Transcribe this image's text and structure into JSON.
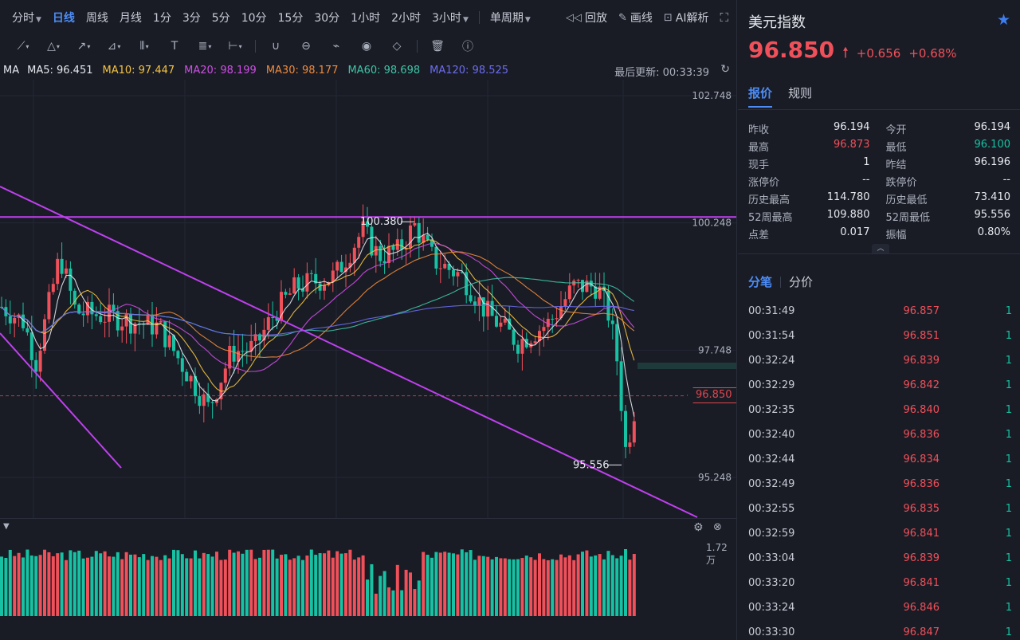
{
  "periods": [
    {
      "label": "分时",
      "dropdown": true,
      "active": false
    },
    {
      "label": "日线",
      "dropdown": false,
      "active": true
    },
    {
      "label": "周线",
      "dropdown": false,
      "active": false
    },
    {
      "label": "月线",
      "dropdown": false,
      "active": false
    },
    {
      "label": "1分",
      "dropdown": false,
      "active": false
    },
    {
      "label": "3分",
      "dropdown": false,
      "active": false
    },
    {
      "label": "5分",
      "dropdown": false,
      "active": false
    },
    {
      "label": "10分",
      "dropdown": false,
      "active": false
    },
    {
      "label": "15分",
      "dropdown": false,
      "active": false
    },
    {
      "label": "30分",
      "dropdown": false,
      "active": false
    },
    {
      "label": "1小时",
      "dropdown": false,
      "active": false
    },
    {
      "label": "2小时",
      "dropdown": false,
      "active": false
    },
    {
      "label": "3小时",
      "dropdown": true,
      "active": false
    }
  ],
  "cycle_select": "单周期",
  "right_tools": {
    "replay": "回放",
    "draw": "画线",
    "ai": "AI解析"
  },
  "draw_tools": [
    "line-tool-icon",
    "triangle-tool-icon",
    "arrow-tool-icon",
    "pen-tool-icon",
    "bars-tool-icon",
    "text-tool-icon",
    "fib-tool-icon",
    "measure-tool-icon",
    "magnet-icon",
    "ruler-icon",
    "trend-icon",
    "eye-icon",
    "eraser-icon",
    "trash-icon",
    "info-icon"
  ],
  "ma": {
    "label": "MA",
    "items": [
      {
        "text": "MA5: 96.451",
        "color": "#e6e8ee"
      },
      {
        "text": "MA10: 97.447",
        "color": "#f5c342"
      },
      {
        "text": "MA20: 98.199",
        "color": "#d04ee6"
      },
      {
        "text": "MA30: 98.177",
        "color": "#f08a3c"
      },
      {
        "text": "MA60: 98.698",
        "color": "#3fc4a6"
      },
      {
        "text": "MA120: 98.525",
        "color": "#6c6cf0"
      }
    ]
  },
  "last_update": "最后更新: 00:33:39",
  "price_axis": [
    "102.748",
    "100.248",
    "97.748",
    "95.248"
  ],
  "current_price_tag": "96.850",
  "annotations": {
    "high": "100.380",
    "low": "95.556"
  },
  "volume_max": "1.72万",
  "colors": {
    "up": "#f0505a",
    "down": "#16c2a3",
    "accent": "#4d8cf5",
    "trendline": "#c040f0"
  },
  "chart_data": {
    "type": "candlestick",
    "title": "",
    "ylim": [
      94.6,
      103.2
    ],
    "y_ticks": [
      102.748,
      100.248,
      97.748,
      95.248
    ],
    "marked_high": 100.38,
    "marked_low": 95.556,
    "last_close": 96.85,
    "volume_max_label": "1.72万"
  },
  "instrument": {
    "name": "美元指数",
    "price": "96.850",
    "change": "+0.656",
    "change_pct": "+0.68%"
  },
  "tabs": [
    "报价",
    "规则"
  ],
  "quote": [
    [
      {
        "label": "昨收",
        "value": "96.194",
        "tone": ""
      },
      {
        "label": "今开",
        "value": "96.194",
        "tone": ""
      }
    ],
    [
      {
        "label": "最高",
        "value": "96.873",
        "tone": "red"
      },
      {
        "label": "最低",
        "value": "96.100",
        "tone": "green"
      }
    ],
    [
      {
        "label": "现手",
        "value": "1",
        "tone": ""
      },
      {
        "label": "昨结",
        "value": "96.196",
        "tone": ""
      }
    ],
    [
      {
        "label": "涨停价",
        "value": "--",
        "tone": ""
      },
      {
        "label": "跌停价",
        "value": "--",
        "tone": ""
      }
    ],
    [
      {
        "label": "历史最高",
        "value": "114.780",
        "tone": ""
      },
      {
        "label": "历史最低",
        "value": "73.410",
        "tone": ""
      }
    ],
    [
      {
        "label": "52周最高",
        "value": "109.880",
        "tone": ""
      },
      {
        "label": "52周最低",
        "value": "95.556",
        "tone": ""
      }
    ],
    [
      {
        "label": "点差",
        "value": "0.017",
        "tone": ""
      },
      {
        "label": "振幅",
        "value": "0.80%",
        "tone": ""
      }
    ]
  ],
  "tick_tabs": [
    "分笔",
    "分价"
  ],
  "ticks": [
    {
      "time": "00:31:49",
      "price": "96.857",
      "vol": "1"
    },
    {
      "time": "00:31:54",
      "price": "96.851",
      "vol": "1"
    },
    {
      "time": "00:32:24",
      "price": "96.839",
      "vol": "1"
    },
    {
      "time": "00:32:29",
      "price": "96.842",
      "vol": "1"
    },
    {
      "time": "00:32:35",
      "price": "96.840",
      "vol": "1"
    },
    {
      "time": "00:32:40",
      "price": "96.836",
      "vol": "1"
    },
    {
      "time": "00:32:44",
      "price": "96.834",
      "vol": "1"
    },
    {
      "time": "00:32:49",
      "price": "96.836",
      "vol": "1"
    },
    {
      "time": "00:32:55",
      "price": "96.835",
      "vol": "1"
    },
    {
      "time": "00:32:59",
      "price": "96.841",
      "vol": "1"
    },
    {
      "time": "00:33:04",
      "price": "96.839",
      "vol": "1"
    },
    {
      "time": "00:33:20",
      "price": "96.841",
      "vol": "1"
    },
    {
      "time": "00:33:24",
      "price": "96.846",
      "vol": "1"
    },
    {
      "time": "00:33:30",
      "price": "96.847",
      "vol": "1"
    }
  ]
}
